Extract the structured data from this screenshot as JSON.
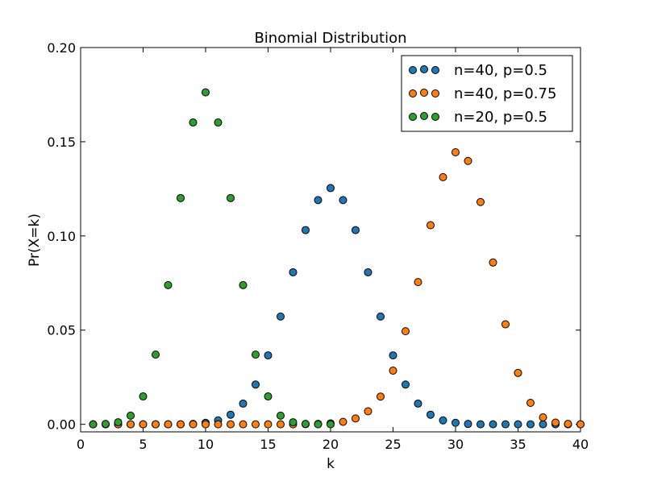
{
  "chart_data": {
    "type": "scatter",
    "title": "Binomial Distribution",
    "xlabel": "k",
    "ylabel": "Pr(X=k)",
    "xlim": [
      0,
      40
    ],
    "ylim": [
      -0.004,
      0.2
    ],
    "xticks": [
      "0",
      "5",
      "10",
      "15",
      "20",
      "25",
      "30",
      "35",
      "40"
    ],
    "yticks": [
      "0.00",
      "0.05",
      "0.10",
      "0.15",
      "0.20"
    ],
    "grid": false,
    "legend_position": "top-right",
    "series": [
      {
        "name": "n=40, p=0.5",
        "color": "#1f77b4",
        "x": [
          1,
          2,
          3,
          4,
          5,
          6,
          7,
          8,
          9,
          10,
          11,
          12,
          13,
          14,
          15,
          16,
          17,
          18,
          19,
          20,
          21,
          22,
          23,
          24,
          25,
          26,
          27,
          28,
          29,
          30,
          31,
          32,
          33,
          34,
          35,
          36,
          37,
          38,
          39,
          40
        ],
        "y": [
          0.0,
          0.0,
          0.0,
          0.0,
          0.0,
          0.0,
          0.0,
          0.0,
          0.0002,
          0.0008,
          0.0021,
          0.0051,
          0.011,
          0.0211,
          0.0366,
          0.0572,
          0.0807,
          0.1031,
          0.119,
          0.1254,
          0.119,
          0.1031,
          0.0807,
          0.0572,
          0.0366,
          0.0211,
          0.011,
          0.0051,
          0.0021,
          0.0008,
          0.0002,
          0.0,
          0.0,
          0.0,
          0.0,
          0.0,
          0.0,
          0.0,
          0.0,
          0.0
        ]
      },
      {
        "name": "n=40, p=0.75",
        "color": "#ff7f0e",
        "x": [
          1,
          2,
          3,
          4,
          5,
          6,
          7,
          8,
          9,
          10,
          11,
          12,
          13,
          14,
          15,
          16,
          17,
          18,
          19,
          20,
          21,
          22,
          23,
          24,
          25,
          26,
          27,
          28,
          29,
          30,
          31,
          32,
          33,
          34,
          35,
          36,
          37,
          38,
          39,
          40
        ],
        "y": [
          0.0,
          0.0,
          0.0,
          0.0,
          0.0,
          0.0,
          0.0,
          0.0,
          0.0,
          0.0,
          0.0,
          0.0,
          0.0,
          0.0,
          0.0,
          0.0,
          0.0,
          0.0001,
          0.0002,
          0.0005,
          0.0013,
          0.0031,
          0.0069,
          0.0147,
          0.0285,
          0.0494,
          0.0755,
          0.1057,
          0.1312,
          0.1444,
          0.1398,
          0.118,
          0.0859,
          0.0531,
          0.0273,
          0.0114,
          0.0037,
          0.0009,
          0.0002,
          0.0
        ]
      },
      {
        "name": "n=20, p=0.5",
        "color": "#2ca02c",
        "x": [
          1,
          2,
          3,
          4,
          5,
          6,
          7,
          8,
          9,
          10,
          11,
          12,
          13,
          14,
          15,
          16,
          17,
          18,
          19,
          20
        ],
        "y": [
          0.0,
          0.0002,
          0.0011,
          0.0046,
          0.0148,
          0.037,
          0.0739,
          0.1201,
          0.1602,
          0.1762,
          0.1602,
          0.1201,
          0.0739,
          0.037,
          0.0148,
          0.0046,
          0.0011,
          0.0002,
          0.0,
          0.0
        ]
      }
    ]
  }
}
